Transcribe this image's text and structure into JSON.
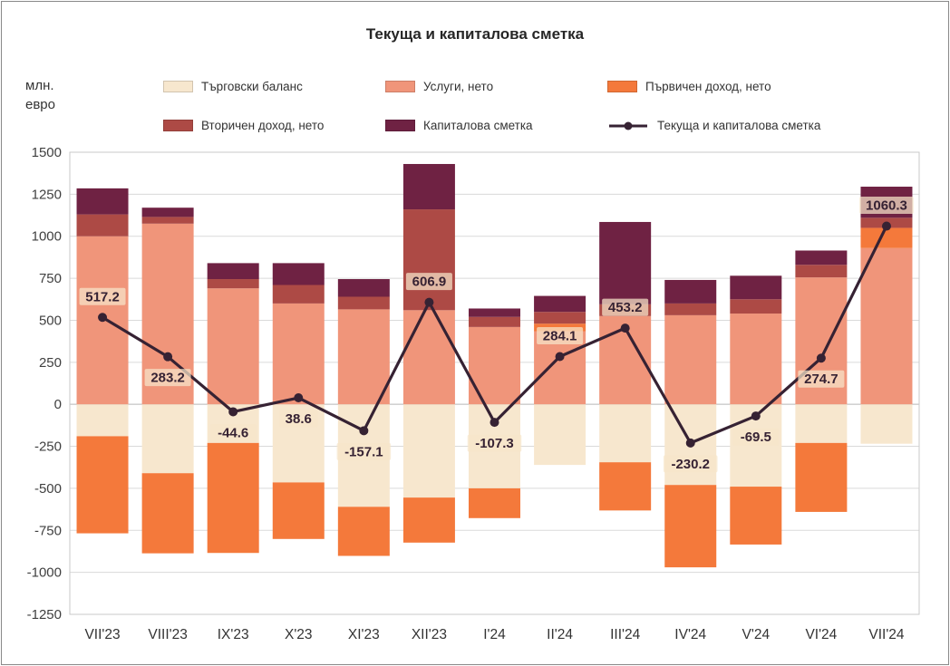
{
  "chart_data": {
    "type": "stacked-bar-line-combo",
    "title": "Текуща и капиталова сметка",
    "y_unit": [
      "млн.",
      "евро"
    ],
    "categories": [
      "VII'23",
      "VIII'23",
      "IX'23",
      "X'23",
      "XI'23",
      "XII'23",
      "I'24",
      "II'24",
      "III'24",
      "IV'24",
      "V'24",
      "VI'24",
      "VII'24"
    ],
    "series": [
      {
        "name": "Търговски баланс",
        "color": "#F7E7CE",
        "values": [
          -190,
          -410,
          -230,
          -465,
          -610,
          -555,
          -500,
          -360.9,
          -345,
          -480,
          -490,
          -230,
          -234.7
        ]
      },
      {
        "name": "Услуги, нето",
        "color": "#F0957A",
        "values": [
          1000,
          1075,
          690,
          600,
          565,
          560,
          460,
          435,
          525,
          530,
          540,
          755,
          930
        ]
      },
      {
        "name": "Първичен доход, нето",
        "color": "#F4793B",
        "values": [
          -577.8,
          -476.8,
          -654.6,
          -336.4,
          -292.1,
          -268.1,
          -177.3,
          45,
          -286.8,
          -490.2,
          -344.5,
          -410.3,
          120
        ]
      },
      {
        "name": "Вторичен доход, нето",
        "color": "#AD4A45",
        "values": [
          130,
          40,
          55,
          110,
          75,
          600,
          60,
          70,
          70,
          70,
          85,
          75,
          60
        ]
      },
      {
        "name": "Капиталова сметка",
        "color": "#6F2243",
        "values": [
          155,
          55,
          95,
          130,
          105,
          270,
          50,
          95,
          490,
          140,
          140,
          85,
          185
        ]
      }
    ],
    "line_series": {
      "name": "Текуща и капиталова сметка",
      "color": "#362233",
      "values": [
        517.2,
        283.2,
        -44.6,
        38.6,
        -157.1,
        606.9,
        -107.3,
        284.1,
        453.2,
        -230.2,
        -69.5,
        274.7,
        1060.3
      ],
      "label_positions": [
        "above",
        "below",
        "below",
        "below",
        "below",
        "above",
        "below",
        "above",
        "above",
        "below",
        "below",
        "below",
        "above"
      ]
    },
    "ylim": [
      -1250,
      1500
    ],
    "ytick_step": 250,
    "grid": true,
    "legend_position": "top",
    "label_background_color": "#F6E6CB"
  }
}
